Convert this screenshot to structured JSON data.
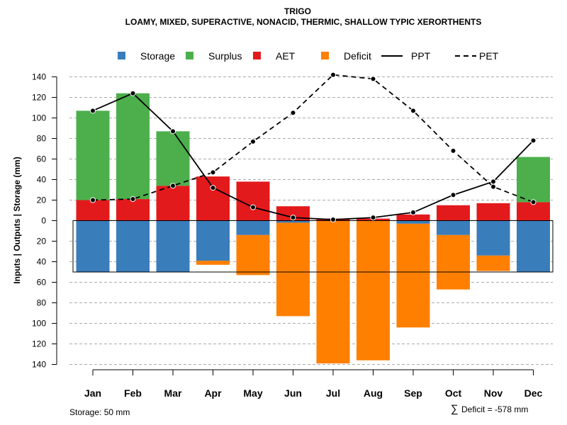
{
  "header": {
    "title": "TRIGO",
    "subtitle": "LOAMY, MIXED, SUPERACTIVE, NONACID, THERMIC, SHALLOW TYPIC XERORTHENTS"
  },
  "legend": {
    "storage": "Storage",
    "surplus": "Surplus",
    "aet": "AET",
    "deficit": "Deficit",
    "ppt": "PPT",
    "pet": "PET"
  },
  "footer": {
    "storage_note": "Storage: 50 mm",
    "deficit_symbol": "∑",
    "deficit_note": "Deficit = -578 mm"
  },
  "colors": {
    "storage": "#3a7dbb",
    "surplus": "#4caf4c",
    "aet": "#e31a1c",
    "deficit": "#ff7f00",
    "line": "#000000",
    "grid": "#aaaaaa"
  },
  "chart_data": {
    "type": "bar",
    "title": "TRIGO",
    "subtitle": "LOAMY, MIXED, SUPERACTIVE, NONACID, THERMIC, SHALLOW TYPIC XERORTHENTS",
    "xlabel": "",
    "ylabel": "Inputs | Outputs | Storage    (mm)",
    "ylim": [
      -140,
      140
    ],
    "yticks": [
      140,
      120,
      100,
      80,
      60,
      40,
      20,
      0,
      -20,
      -40,
      -60,
      -80,
      -100,
      -120,
      -140
    ],
    "ytick_labels": [
      "140",
      "120",
      "100",
      "80",
      "60",
      "40",
      "20",
      "0",
      "20",
      "40",
      "60",
      "80",
      "100",
      "120",
      "140"
    ],
    "grid": true,
    "legend_position": "top",
    "storage_capacity": 50,
    "categories": [
      "Jan",
      "Feb",
      "Mar",
      "Apr",
      "May",
      "Jun",
      "Jul",
      "Aug",
      "Sep",
      "Oct",
      "Nov",
      "Dec"
    ],
    "series": [
      {
        "name": "AET",
        "kind": "bar-up-base",
        "values": [
          20,
          21,
          34,
          43,
          38,
          14,
          2,
          2,
          6,
          15,
          17,
          18
        ]
      },
      {
        "name": "Surplus",
        "kind": "bar-up-stack",
        "values": [
          87,
          103,
          53,
          0,
          0,
          0,
          0,
          0,
          0,
          0,
          0,
          44
        ]
      },
      {
        "name": "Storage",
        "kind": "bar-down",
        "values": [
          50,
          50,
          50,
          39,
          14,
          2,
          0,
          0,
          3,
          14,
          34,
          50
        ]
      },
      {
        "name": "Deficit",
        "kind": "bar-down-stack",
        "values": [
          0,
          0,
          0,
          4,
          39,
          91,
          139,
          136,
          101,
          53,
          15,
          0
        ]
      },
      {
        "name": "PPT",
        "kind": "line-solid",
        "values": [
          107,
          124,
          87,
          32,
          13,
          3,
          1,
          3,
          8,
          25,
          38,
          78
        ]
      },
      {
        "name": "PET",
        "kind": "line-dashed",
        "values": [
          20,
          21,
          34,
          47,
          77,
          105,
          142,
          138,
          107,
          68,
          33,
          18
        ]
      }
    ]
  }
}
